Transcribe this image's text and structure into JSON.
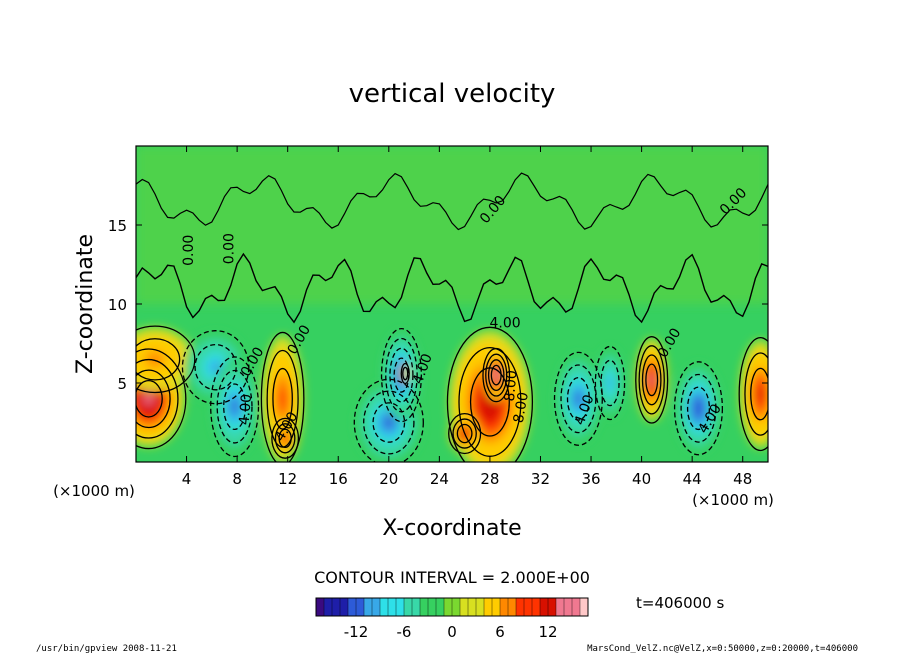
{
  "chart_data": {
    "type": "heatmap",
    "title": "vertical velocity",
    "xlabel": "X-coordinate",
    "ylabel": "Z-coordinate",
    "x_unit_left": "(×1000 m)",
    "x_unit_right": "(×1000 m)",
    "xlim": [
      0,
      50
    ],
    "ylim": [
      0,
      20
    ],
    "x_ticks": [
      4,
      8,
      12,
      16,
      20,
      24,
      28,
      32,
      36,
      40,
      44,
      48
    ],
    "y_ticks": [
      5,
      10,
      15
    ],
    "contour_interval_text": "CONTOUR INTERVAL = 2.000E+00",
    "time_text": "t=406000 s",
    "colorbar": {
      "min": -17,
      "max": 17,
      "ticks": [
        -12,
        -6,
        0,
        6,
        12
      ],
      "colors": [
        "#3a0a80",
        "#1e1ea8",
        "#2d5bd8",
        "#38a8e8",
        "#2ee0e8",
        "#38d8a8",
        "#36d060",
        "#7ad830",
        "#d8e020",
        "#ffcc00",
        "#ff8800",
        "#ff3300",
        "#d81000",
        "#f07890",
        "#ffc8c8"
      ]
    },
    "contour_labels": [
      {
        "text": "0.00",
        "x": 9.5,
        "y": 6.2,
        "rot": -60
      },
      {
        "text": "0.00",
        "x": 7.7,
        "y": 13.5,
        "rot": -90
      },
      {
        "text": "0.00",
        "x": 4.5,
        "y": 13.4,
        "rot": -90
      },
      {
        "text": "0.00",
        "x": 13.2,
        "y": 7.6,
        "rot": -60
      },
      {
        "text": "0.00",
        "x": 28.5,
        "y": 15.8,
        "rot": -50
      },
      {
        "text": "0.00",
        "x": 47.5,
        "y": 16.3,
        "rot": -45
      },
      {
        "text": "0.00",
        "x": 42.5,
        "y": 7.4,
        "rot": -60
      },
      {
        "text": "4.00",
        "x": 9.0,
        "y": 3.3,
        "rot": -85
      },
      {
        "text": "4.00",
        "x": 12.2,
        "y": 2.1,
        "rot": -60
      },
      {
        "text": "4.00",
        "x": 23.0,
        "y": 5.8,
        "rot": -70
      },
      {
        "text": "4.00",
        "x": 29.2,
        "y": 8.5,
        "rot": 0
      },
      {
        "text": "8.00",
        "x": 30.0,
        "y": 4.8,
        "rot": -85
      },
      {
        "text": "8.00",
        "x": 30.8,
        "y": 3.4,
        "rot": -80
      },
      {
        "text": "4.00",
        "x": 35.8,
        "y": 3.2,
        "rot": -70
      },
      {
        "text": "4.00",
        "x": 45.7,
        "y": 2.6,
        "rot": -60
      }
    ],
    "cells": [
      {
        "x": 1.0,
        "z": 4.0,
        "v": 15,
        "sx": 2.8,
        "sz": 3.0
      },
      {
        "x": 1.5,
        "z": 6.5,
        "v": 7,
        "sx": 3.0,
        "sz": 2.0
      },
      {
        "x": 6.3,
        "z": 6.0,
        "v": -9,
        "sx": 2.5,
        "sz": 2.2
      },
      {
        "x": 7.8,
        "z": 3.5,
        "v": -11,
        "sx": 1.8,
        "sz": 3.0
      },
      {
        "x": 11.6,
        "z": 4.0,
        "v": 10,
        "sx": 1.6,
        "sz": 4.0
      },
      {
        "x": 11.8,
        "z": 1.5,
        "v": 12,
        "sx": 1.0,
        "sz": 1.2
      },
      {
        "x": 20.0,
        "z": 2.5,
        "v": -12,
        "sx": 2.6,
        "sz": 2.6
      },
      {
        "x": 21.0,
        "z": 5.5,
        "v": -14,
        "sx": 1.5,
        "sz": 2.8
      },
      {
        "x": 21.3,
        "z": 5.6,
        "v": 6,
        "sx": 0.3,
        "sz": 0.6
      },
      {
        "x": 28.0,
        "z": 3.8,
        "v": 13,
        "sx": 3.2,
        "sz": 4.5
      },
      {
        "x": 28.5,
        "z": 5.5,
        "v": 17,
        "sx": 1.0,
        "sz": 1.6
      },
      {
        "x": 26.0,
        "z": 1.8,
        "v": 13,
        "sx": 1.2,
        "sz": 1.2
      },
      {
        "x": 35.0,
        "z": 4.0,
        "v": -12,
        "sx": 1.8,
        "sz": 2.8
      },
      {
        "x": 37.5,
        "z": 5.0,
        "v": -9,
        "sx": 1.1,
        "sz": 2.2
      },
      {
        "x": 40.8,
        "z": 5.2,
        "v": 14,
        "sx": 1.2,
        "sz": 2.6
      },
      {
        "x": 44.5,
        "z": 3.4,
        "v": -13,
        "sx": 1.8,
        "sz": 2.8
      },
      {
        "x": 49.4,
        "z": 4.3,
        "v": 11,
        "sx": 1.6,
        "sz": 3.4
      }
    ]
  },
  "footer": {
    "left": "/usr/bin/gpview  2008-11-21",
    "right": "MarsCond_VelZ.nc@VelZ,x=0:50000,z=0:20000,t=406000"
  }
}
